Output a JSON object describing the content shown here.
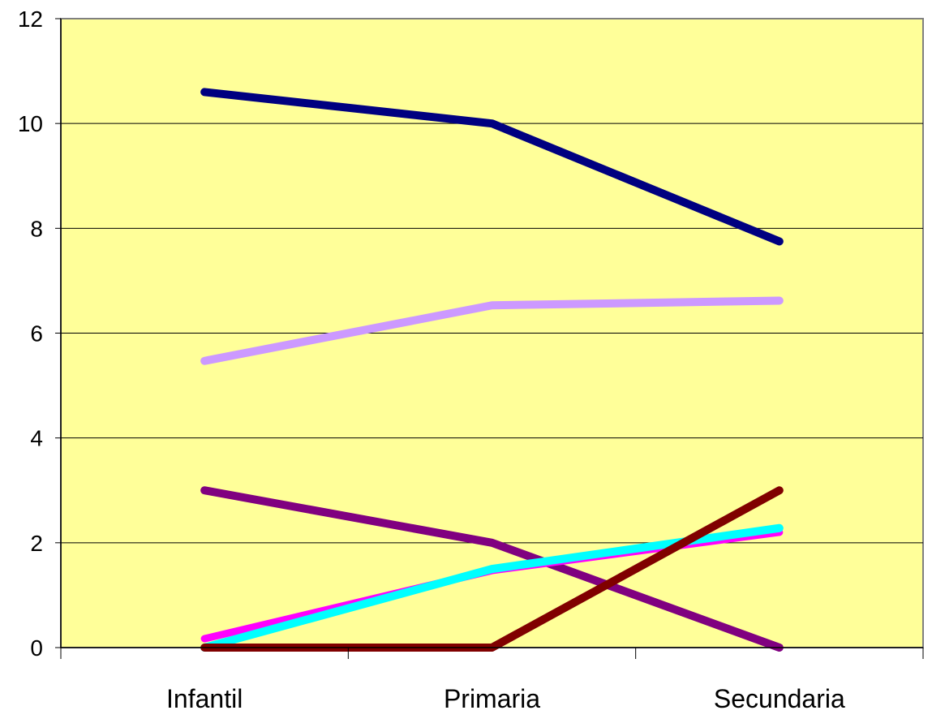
{
  "chart_data": {
    "type": "line",
    "categories": [
      "Infantil",
      "Primaria",
      "Secundaria"
    ],
    "series": [
      {
        "color": "#000080",
        "values": [
          10.6,
          10.0,
          7.75
        ]
      },
      {
        "color": "#CC99FF",
        "values": [
          5.47,
          6.53,
          6.62
        ]
      },
      {
        "color": "#800080",
        "values": [
          3.0,
          2.0,
          0.0
        ]
      },
      {
        "color": "#FF00FF",
        "values": [
          0.17,
          1.47,
          2.2
        ]
      },
      {
        "color": "#00FFFF",
        "values": [
          0.0,
          1.5,
          2.28
        ]
      },
      {
        "color": "#800000",
        "values": [
          0.0,
          0.0,
          3.0
        ]
      }
    ],
    "ylim": [
      0,
      12
    ],
    "yticks": [
      "0",
      "2",
      "4",
      "6",
      "8",
      "10",
      "12"
    ],
    "grid": true,
    "plot_background": "#FFFF99",
    "plot_border": "#808080"
  }
}
